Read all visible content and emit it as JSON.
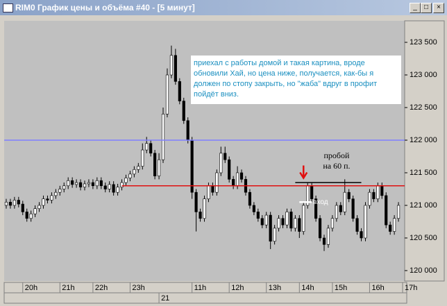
{
  "chart_data": {
    "type": "candlestick",
    "title": "RIM0 График цены и объёма #40 - [5 минут]",
    "ylim": [
      119840,
      123830
    ],
    "xlim": [
      -0.5,
      96.5
    ],
    "yticks": [
      {
        "value": 120000,
        "label": "120 000"
      },
      {
        "value": 120500,
        "label": "120 500"
      },
      {
        "value": 121000,
        "label": "121 000"
      },
      {
        "value": 121500,
        "label": "121 500"
      },
      {
        "value": 122000,
        "label": "122 000"
      },
      {
        "value": 122500,
        "label": "122 500"
      },
      {
        "value": 123000,
        "label": "123 000"
      },
      {
        "value": 123500,
        "label": "123 500"
      }
    ],
    "xticks": [
      {
        "value": 4,
        "label": "20h"
      },
      {
        "value": 13,
        "label": "21h"
      },
      {
        "value": 21,
        "label": "22h"
      },
      {
        "value": 30,
        "label": "23h"
      },
      {
        "value": 45,
        "label": "11h"
      },
      {
        "value": 54,
        "label": "12h"
      },
      {
        "value": 63,
        "label": "13h"
      },
      {
        "value": 71,
        "label": "14h"
      },
      {
        "value": 79,
        "label": "15h"
      },
      {
        "value": 88,
        "label": "16h"
      },
      {
        "value": 96,
        "label": "17h"
      }
    ],
    "date_ticks": [
      {
        "value": 37,
        "label": "21"
      }
    ],
    "up_color": "#ffffff",
    "down_color": "#000000",
    "open": [
      121000,
      121050,
      121000,
      121080,
      121020,
      120900,
      120800,
      120870,
      120950,
      121000,
      121100,
      121080,
      121150,
      121200,
      121250,
      121300,
      121380,
      121320,
      121350,
      121280,
      121330,
      121350,
      121300,
      121380,
      121300,
      121250,
      121320,
      121200,
      121280,
      121350,
      121420,
      121480,
      121550,
      121600,
      121850,
      121950,
      121800,
      121450,
      121700,
      122400,
      123000,
      123300,
      122900,
      122600,
      122300,
      122000,
      121200,
      120900,
      120800,
      121100,
      121300,
      121200,
      121500,
      121800,
      121700,
      121400,
      121300,
      121500,
      121400,
      121200,
      121000,
      120900,
      120800,
      120700,
      120850,
      120450,
      120650,
      120800,
      120700,
      120900,
      120650,
      120800,
      120600,
      121000,
      121300,
      121100,
      120800,
      120500,
      120400,
      120650,
      120800,
      121000,
      120900,
      121200,
      121100,
      120800,
      120600,
      120500,
      121000,
      121200,
      121100,
      121300,
      121150,
      120700,
      120600,
      120800
    ],
    "high": [
      121100,
      121100,
      121130,
      121130,
      121070,
      120950,
      120920,
      121000,
      121050,
      121150,
      121150,
      121200,
      121250,
      121300,
      121350,
      121430,
      121430,
      121400,
      121400,
      121380,
      121400,
      121400,
      121430,
      121430,
      121350,
      121370,
      121370,
      121330,
      121400,
      121470,
      121530,
      121600,
      121650,
      121950,
      122050,
      122000,
      121850,
      121800,
      122500,
      123100,
      123450,
      123400,
      122950,
      122650,
      122350,
      122050,
      121250,
      120950,
      121150,
      121350,
      121350,
      121550,
      121900,
      121900,
      121750,
      121450,
      121600,
      121550,
      121450,
      121250,
      121050,
      120950,
      120850,
      120900,
      120900,
      120700,
      120850,
      120850,
      120950,
      120950,
      120850,
      120850,
      121050,
      121350,
      121350,
      121150,
      120850,
      120550,
      120700,
      120850,
      121050,
      121050,
      121400,
      121250,
      121150,
      120850,
      120650,
      121050,
      121250,
      121250,
      121350,
      121350,
      121200,
      120750,
      120850,
      121050
    ],
    "low": [
      120950,
      120950,
      120950,
      120970,
      120850,
      120750,
      120750,
      120820,
      120900,
      120950,
      121030,
      121030,
      121100,
      121150,
      121200,
      121250,
      121270,
      121270,
      121230,
      121230,
      121280,
      121250,
      121250,
      121250,
      121200,
      121200,
      121150,
      121150,
      121230,
      121300,
      121370,
      121430,
      121500,
      121550,
      121800,
      121750,
      121400,
      121400,
      121650,
      122350,
      122950,
      122850,
      122550,
      122250,
      121950,
      121100,
      120600,
      120750,
      120750,
      121050,
      121150,
      121150,
      121450,
      121650,
      121350,
      121250,
      121250,
      121350,
      121150,
      120950,
      120850,
      120750,
      120650,
      120650,
      120330,
      120400,
      120600,
      120650,
      120650,
      120600,
      120600,
      120500,
      120550,
      120950,
      121050,
      120750,
      120450,
      120300,
      120350,
      120600,
      120750,
      120850,
      120850,
      121050,
      120750,
      120550,
      120450,
      120450,
      120950,
      121050,
      121050,
      121100,
      120650,
      120550,
      120550,
      120750
    ],
    "close": [
      121050,
      121000,
      121080,
      121020,
      120900,
      120800,
      120870,
      120950,
      121000,
      121100,
      121080,
      121150,
      121200,
      121250,
      121300,
      121380,
      121320,
      121350,
      121280,
      121330,
      121350,
      121300,
      121380,
      121300,
      121250,
      121320,
      121200,
      121280,
      121350,
      121420,
      121480,
      121550,
      121600,
      121850,
      121950,
      121800,
      121450,
      121700,
      122400,
      123000,
      123300,
      122900,
      122600,
      122300,
      122000,
      121200,
      120900,
      120800,
      121100,
      121300,
      121200,
      121500,
      121800,
      121700,
      121400,
      121300,
      121500,
      121400,
      121200,
      121000,
      120900,
      120800,
      120700,
      120850,
      120450,
      120650,
      120800,
      120700,
      120900,
      120650,
      120800,
      120600,
      121000,
      121300,
      121100,
      120800,
      120500,
      120400,
      120650,
      120800,
      121000,
      120900,
      121200,
      121100,
      120800,
      120600,
      120500,
      121000,
      121200,
      121100,
      121300,
      121150,
      120700,
      120600,
      120800,
      121000
    ],
    "hlines": [
      {
        "value": 122000,
        "color": "#7f7fff"
      },
      {
        "value": 121300,
        "color": "#e01010",
        "x_start": 28
      }
    ],
    "segment": {
      "value": 121350,
      "x_from": 70,
      "x_to": 86,
      "color": "#000000"
    },
    "entry": {
      "value": 121050,
      "x_from": 71,
      "x_to": 74,
      "label": "вход"
    },
    "arrow": {
      "value": 121420,
      "x": 72,
      "color": "#e01010"
    },
    "breakout_lines": [
      "пробой",
      "на 60 п."
    ],
    "note_lines": [
      "приехал с работы домой и такая картина, вроде",
      "обновили Хай, но цена ниже, получается, как-бы я",
      "должен по стопу закрыть, но \"жаба\" вдруг в профит",
      "пойдёт вниз."
    ]
  }
}
